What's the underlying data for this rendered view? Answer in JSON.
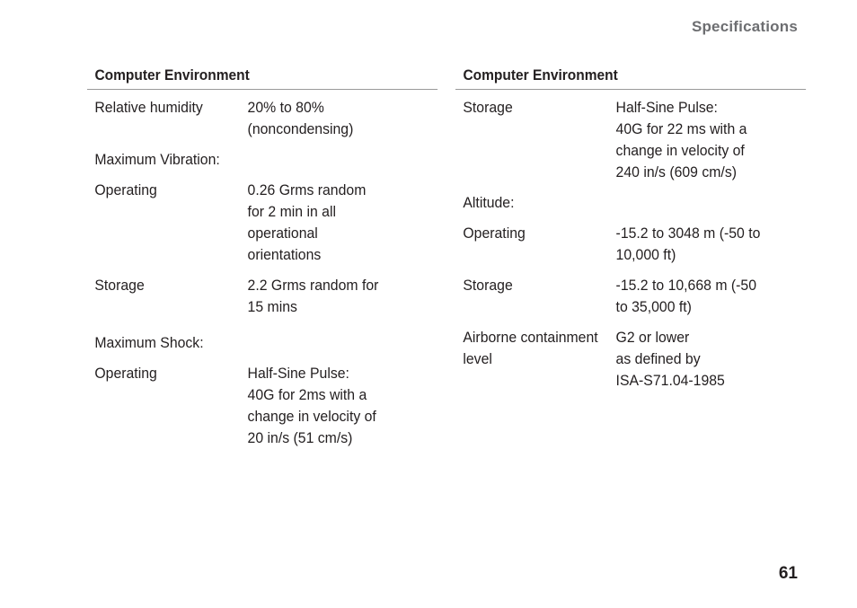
{
  "header": {
    "section": "Specifications"
  },
  "page_number": "61",
  "left": {
    "title": "Computer Environment",
    "rows": [
      {
        "label": "Relative humidity",
        "value": "20% to 80%\n(noncondensing)"
      },
      {
        "label": "Maximum Vibration:",
        "value": ""
      },
      {
        "label": "Operating",
        "value": "0.26 Grms random\nfor 2 min in all\noperational\norientations"
      },
      {
        "label": "Storage",
        "value": "2.2 Grms random for\n15 mins"
      },
      {
        "label": "Maximum Shock:",
        "value": ""
      },
      {
        "label": "Operating",
        "value": "Half-Sine Pulse:\n40G for 2ms with a\nchange in velocity of\n20 in/s (51 cm/s)"
      }
    ]
  },
  "right": {
    "title": "Computer Environment",
    "rows": [
      {
        "label": "Storage",
        "value": "Half-Sine Pulse:\n40G for 22 ms with a\nchange in velocity of\n240 in/s (609 cm/s)"
      },
      {
        "label": "Altitude:",
        "value": ""
      },
      {
        "label": "Operating",
        "value": "-15.2 to 3048 m (-50 to\n10,000 ft)"
      },
      {
        "label": "Storage",
        "value": "-15.2 to 10,668 m (-50\nto 35,000 ft)"
      },
      {
        "label": "Airborne containment\nlevel",
        "value": "G2 or lower\nas defined by\nISA-S71.04-1985"
      }
    ]
  }
}
